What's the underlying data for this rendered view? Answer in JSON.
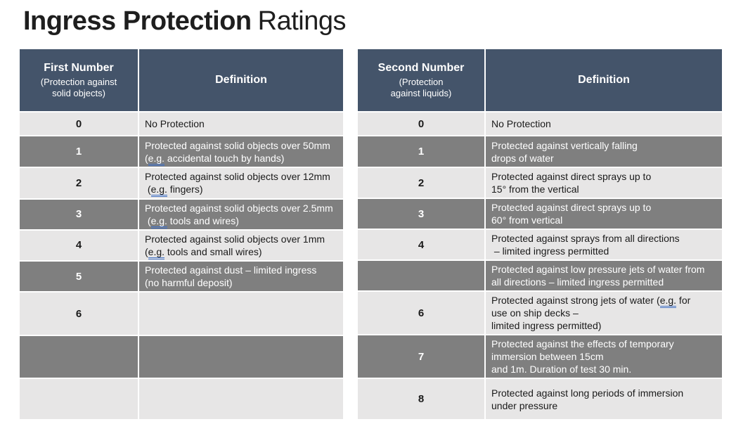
{
  "slide": {
    "title_bold": "Ingress Protection",
    "title_regular": "Ratings"
  },
  "colors": {
    "header_bg": "#44546a",
    "header_text": "#ffffff",
    "row_dark": "#7f7f7f",
    "row_light": "#e7e6e6",
    "dark_row_text": "#ffffff",
    "light_row_text": "#1a1a1a",
    "spellcheck_underline": "#4472c4"
  },
  "table": {
    "headers": {
      "first_number_title": "First Number",
      "first_number_subtitle": "(Protection against\nsolid objects)",
      "definition_left": "Definition",
      "second_number_title": "Second Number",
      "second_number_subtitle": "(Protection\nagainst liquids)",
      "definition_right": "Definition"
    },
    "rows": [
      {
        "solid_number": "0",
        "solid_definition": "No Protection",
        "liquid_number": "0",
        "liquid_definition": "No Protection"
      },
      {
        "solid_number": "1",
        "solid_definition": "Protected against solid objects over 50mm\n(e.g. accidental touch by hands)",
        "liquid_number": "1",
        "liquid_definition": "Protected against vertically falling\ndrops of water"
      },
      {
        "solid_number": "2",
        "solid_definition": "Protected against solid objects over 12mm\n (e.g. fingers)",
        "liquid_number": "2",
        "liquid_definition": "Protected against direct sprays up to\n15° from the vertical"
      },
      {
        "solid_number": "3",
        "solid_definition": "Protected against solid objects over 2.5mm\n (e.g. tools and wires)",
        "liquid_number": "3",
        "liquid_definition": "Protected against direct sprays up to\n60° from vertical"
      },
      {
        "solid_number": "4",
        "solid_definition": "Protected against solid objects over 1mm\n(e.g. tools and small wires)",
        "liquid_number": "4",
        "liquid_definition": "Protected against sprays from all directions\n – limited ingress permitted"
      },
      {
        "solid_number": "5",
        "solid_definition": "Protected against dust – limited ingress\n(no harmful deposit)",
        "liquid_number": "",
        "liquid_definition": "Protected against low pressure jets of water from\nall directions – limited ingress permitted"
      },
      {
        "solid_number": "6",
        "solid_definition": "",
        "liquid_number": "6",
        "liquid_definition": "Protected against strong jets of water (e.g. for\nuse on ship decks –\nlimited ingress permitted)"
      },
      {
        "solid_number": "",
        "solid_definition": "",
        "liquid_number": "7",
        "liquid_definition": "Protected against the effects of temporary\nimmersion between 15cm\nand 1m. Duration of test 30 min."
      },
      {
        "solid_number": "",
        "solid_definition": "",
        "liquid_number": "8",
        "liquid_definition": "Protected against long periods of immersion\nunder pressure"
      }
    ]
  }
}
